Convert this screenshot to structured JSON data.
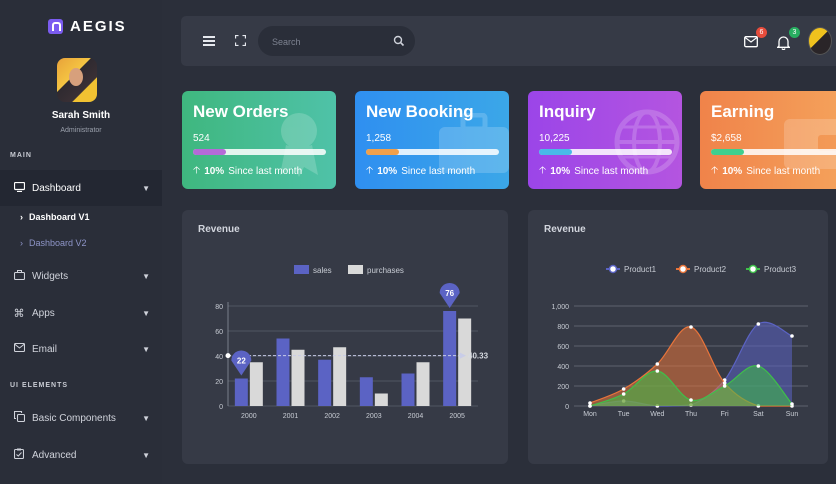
{
  "brand": {
    "name": "AEGIS"
  },
  "user": {
    "name": "Sarah Smith",
    "role": "Administrator"
  },
  "sidebar": {
    "section_main": "MAIN",
    "section_ui": "UI ELEMENTS",
    "items": [
      {
        "label": "Dashboard",
        "icon": "monitor-icon"
      },
      {
        "label": "Widgets",
        "icon": "briefcase-icon"
      },
      {
        "label": "Apps",
        "icon": "command-icon"
      },
      {
        "label": "Email",
        "icon": "mail-icon"
      },
      {
        "label": "Basic Components",
        "icon": "copy-icon"
      },
      {
        "label": "Advanced",
        "icon": "clipboard-icon"
      }
    ],
    "sub_items": [
      {
        "label": "Dashboard V1"
      },
      {
        "label": "Dashboard V2"
      }
    ]
  },
  "topbar": {
    "search_placeholder": "Search",
    "mail_count": "6",
    "notification_count": "3",
    "mail_badge_color": "#e74c3c",
    "notification_badge_color": "#27ae60"
  },
  "cards": [
    {
      "title": "New Orders",
      "value": "524",
      "progress": 0.25,
      "pct": "10%",
      "since": "Since last month",
      "gradient": [
        "#3fb77f",
        "#4fc2a8"
      ],
      "fill": "#b46ad8"
    },
    {
      "title": "New Booking",
      "value": "1,258",
      "progress": 0.25,
      "pct": "10%",
      "since": "Since last month",
      "gradient": [
        "#2f8ff0",
        "#3ba7e8"
      ],
      "fill": "#f0a04b"
    },
    {
      "title": "Inquiry",
      "value": "10,225",
      "progress": 0.25,
      "pct": "10%",
      "since": "Since last month",
      "gradient": [
        "#9b45e8",
        "#b455e0"
      ],
      "fill": "#49b9e8"
    },
    {
      "title": "Earning",
      "value": "$2,658",
      "progress": 0.25,
      "pct": "10%",
      "since": "Since last month",
      "gradient": [
        "#f0834a",
        "#f4a05a"
      ],
      "fill": "#3fcf8e"
    }
  ],
  "charts": [
    {
      "title": "Revenue",
      "chart_data": {
        "type": "bar",
        "categories": [
          "2000",
          "2001",
          "2002",
          "2003",
          "2004",
          "2005"
        ],
        "series": [
          {
            "name": "sales",
            "values": [
              22,
              54,
              37,
              23,
              26,
              76
            ],
            "color": "#5b63c4"
          },
          {
            "name": "purchases",
            "values": [
              35,
              45,
              47,
              10,
              35,
              70
            ],
            "color": "#d9d9d9"
          }
        ],
        "yticks": [
          "0",
          "20",
          "40",
          "60",
          "80"
        ],
        "ylim": [
          0,
          80
        ],
        "average_line": 40.33,
        "average_label": "40.33",
        "markers": [
          {
            "series": "sales",
            "index": 0,
            "label": "22"
          },
          {
            "series": "sales",
            "index": 5,
            "label": "76"
          }
        ],
        "legend": "top"
      }
    },
    {
      "title": "Revenue",
      "chart_data": {
        "type": "area",
        "categories": [
          "Mon",
          "Tue",
          "Wed",
          "Thu",
          "Fri",
          "Sat",
          "Sun"
        ],
        "series": [
          {
            "name": "Product1",
            "values": [
              0,
              50,
              0,
              10,
              260,
              820,
              700
            ],
            "color": "#5b63c4"
          },
          {
            "name": "Product2",
            "values": [
              30,
              170,
              420,
              790,
              230,
              0,
              0
            ],
            "color": "#e8743b"
          },
          {
            "name": "Product3",
            "values": [
              0,
              120,
              350,
              60,
              200,
              400,
              20
            ],
            "color": "#3fbf4a"
          }
        ],
        "yticks": [
          "0",
          "200",
          "400",
          "600",
          "800",
          "1,000"
        ],
        "ylim": [
          0,
          1000
        ],
        "legend": "top"
      }
    }
  ]
}
